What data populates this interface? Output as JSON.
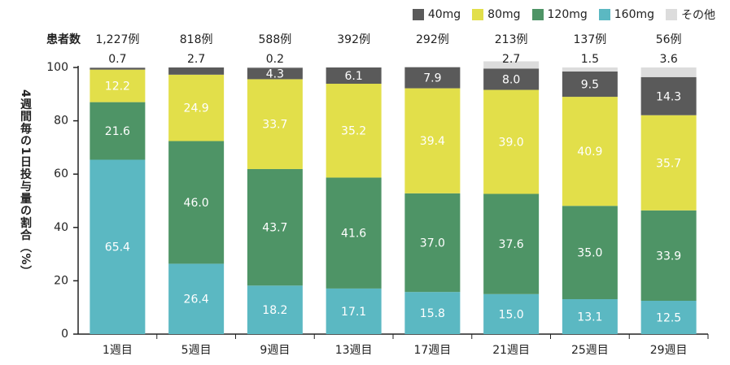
{
  "chart_data": {
    "type": "bar",
    "stacked": true,
    "categories": [
      "1週目",
      "5週目",
      "9週目",
      "13週目",
      "17週目",
      "21週目",
      "25週目",
      "29週目"
    ],
    "patient_header": "患者数",
    "patient_counts": [
      "1,227例",
      "818例",
      "588例",
      "392例",
      "292例",
      "213例",
      "137例",
      "56例"
    ],
    "ylabel": "4週間毎の1日投与量の割合（%）",
    "ylim": [
      0,
      100
    ],
    "yticks": [
      0,
      20,
      40,
      60,
      80,
      100
    ],
    "legend_position": "top-right",
    "series": [
      {
        "name": "160mg",
        "color": "#5bb8c2",
        "values": [
          65.4,
          26.4,
          18.2,
          17.1,
          15.8,
          15.0,
          13.1,
          12.5
        ],
        "labels": [
          "65.4",
          "26.4",
          "18.2",
          "17.1",
          "15.8",
          "15.0",
          "13.1",
          "12.5"
        ]
      },
      {
        "name": "120mg",
        "color": "#4e9466",
        "values": [
          21.6,
          46.0,
          43.7,
          41.6,
          37.0,
          37.6,
          35.0,
          33.9
        ],
        "labels": [
          "21.6",
          "46.0",
          "43.7",
          "41.6",
          "37.0",
          "37.6",
          "35.0",
          "33.9"
        ]
      },
      {
        "name": "80mg",
        "color": "#e2df4a",
        "values": [
          12.2,
          24.9,
          33.7,
          35.2,
          39.4,
          39.0,
          40.9,
          35.7
        ],
        "labels": [
          "12.2",
          "24.9",
          "33.7",
          "35.2",
          "39.4",
          "39.0",
          "40.9",
          "35.7"
        ]
      },
      {
        "name": "40mg",
        "color": "#5a5a5a",
        "values": [
          0.7,
          2.7,
          4.3,
          6.1,
          7.9,
          8.0,
          9.5,
          14.3
        ],
        "labels": [
          "0.7",
          "2.7",
          "4.3",
          "6.1",
          "7.9",
          "8.0",
          "9.5",
          "14.3"
        ]
      },
      {
        "name": "その他",
        "color": "#dcdcdc",
        "values": [
          0.0,
          0.0,
          0.2,
          0.0,
          0.0,
          2.7,
          1.5,
          3.6
        ],
        "labels": [
          "",
          "",
          "0.2",
          "",
          "",
          "2.7",
          "1.5",
          "3.6"
        ]
      }
    ],
    "legend_order": [
      "40mg",
      "80mg",
      "120mg",
      "160mg",
      "その他"
    ],
    "legend_colors": [
      "#5a5a5a",
      "#e2df4a",
      "#4e9466",
      "#5bb8c2",
      "#dcdcdc"
    ]
  }
}
